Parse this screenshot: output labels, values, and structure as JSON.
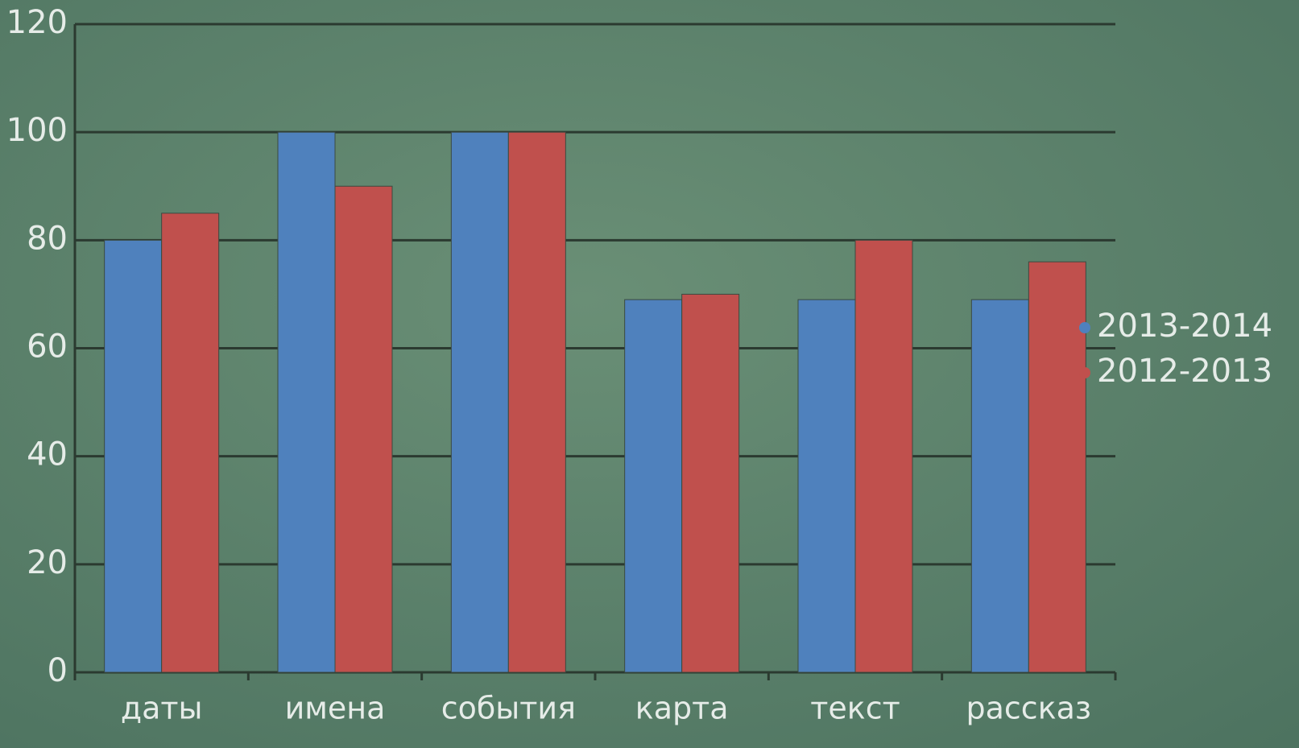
{
  "chart_data": {
    "type": "bar",
    "categories": [
      "даты",
      "имена",
      "события",
      "карта",
      "текст",
      "рассказ"
    ],
    "series": [
      {
        "name": "2013-2014",
        "color": "#4f81bd",
        "values": [
          80,
          100,
          100,
          69,
          69,
          69
        ]
      },
      {
        "name": "2012-2013",
        "color": "#c0504d",
        "values": [
          85,
          90,
          100,
          70,
          80,
          76
        ]
      }
    ],
    "ylim": [
      0,
      120
    ],
    "yticks": [
      0,
      20,
      40,
      60,
      80,
      100,
      120
    ],
    "grid": true,
    "legend": "right"
  }
}
